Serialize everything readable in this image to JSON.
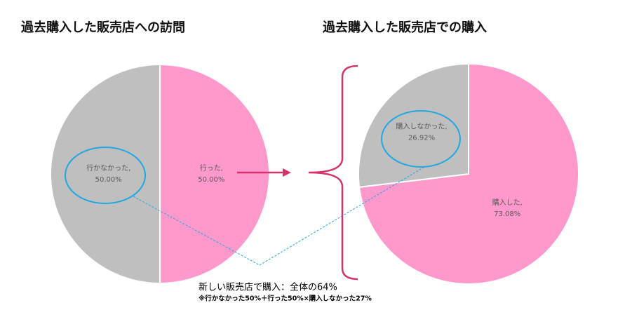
{
  "chart_data": [
    {
      "type": "pie",
      "title": "過去購入した販売店への訪問",
      "categories": [
        "行った,",
        "行かなかった,"
      ],
      "values": [
        50.0,
        50.0
      ],
      "value_labels": [
        "50.00%",
        "50.00%"
      ],
      "colors": [
        "#ff99cc",
        "#bfbfbf"
      ]
    },
    {
      "type": "pie",
      "title": "過去購入した販売店での購入",
      "categories": [
        "購入した,",
        "購入しなかった,"
      ],
      "values": [
        73.08,
        26.92
      ],
      "value_labels": [
        "73.08%",
        "26.92%"
      ],
      "colors": [
        "#ff99cc",
        "#bfbfbf"
      ]
    }
  ],
  "annotations": [
    "新しい販売店で購入：全体の64%",
    "※行かなかった50%＋行った50%×購入しなかった27%"
  ]
}
